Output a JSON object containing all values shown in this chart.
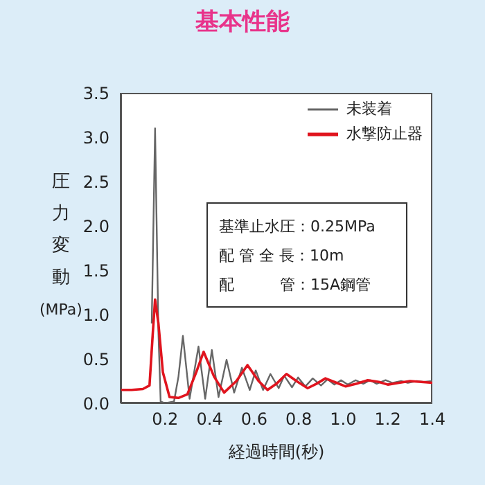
{
  "chart_data": {
    "type": "line",
    "title": "基本性能",
    "xlabel": "経過時間(秒)",
    "ylabel": "圧力変動(MPa)",
    "xlim": [
      0,
      1.4
    ],
    "xticks": [
      0.2,
      0.4,
      0.6,
      0.8,
      {
        "value": 1.0,
        "label": "1.0"
      },
      1.2,
      1.4
    ],
    "ylim": [
      0,
      3.5
    ],
    "yticks": [
      {
        "value": 0,
        "label": "0.0"
      },
      0.5,
      {
        "value": 1,
        "label": "1.0"
      },
      1.5,
      {
        "value": 2,
        "label": "2.0"
      },
      2.5,
      {
        "value": 3,
        "label": "3.0"
      },
      3.5
    ],
    "legend": "top right",
    "marker": "none",
    "line_style": "solid",
    "annotations": [
      "基準止水圧：0.25MPa",
      "配 管 全 長：10m",
      "配　　　管：15A鋼管"
    ],
    "series": [
      {
        "name": "未装着",
        "color": "#666666",
        "x": [
          0.14,
          0.155,
          0.17,
          0.18,
          0.2,
          0.24,
          0.26,
          0.28,
          0.31,
          0.35,
          0.38,
          0.41,
          0.44,
          0.476,
          0.51,
          0.545,
          0.58,
          0.607,
          0.64,
          0.673,
          0.71,
          0.735,
          0.77,
          0.797,
          0.83,
          0.863,
          0.9,
          0.93,
          0.96,
          0.99,
          1.02,
          1.056,
          1.09,
          1.12,
          1.15,
          1.19,
          1.22,
          1.26,
          1.29,
          1.33,
          1.36,
          1.4
        ],
        "values": [
          0.9,
          3.1,
          0.8,
          0.02,
          0.0,
          0.02,
          0.3,
          0.76,
          0.05,
          0.64,
          0.05,
          0.6,
          0.07,
          0.49,
          0.12,
          0.4,
          0.15,
          0.37,
          0.15,
          0.33,
          0.17,
          0.31,
          0.18,
          0.29,
          0.19,
          0.28,
          0.2,
          0.27,
          0.21,
          0.26,
          0.21,
          0.26,
          0.22,
          0.26,
          0.22,
          0.26,
          0.23,
          0.25,
          0.23,
          0.25,
          0.24,
          0.25
        ]
      },
      {
        "name": "水撃防止器",
        "color": "#e0141e",
        "x": [
          0,
          0.05,
          0.1,
          0.13,
          0.145,
          0.155,
          0.17,
          0.19,
          0.22,
          0.26,
          0.3,
          0.34,
          0.373,
          0.42,
          0.465,
          0.52,
          0.57,
          0.62,
          0.66,
          0.7,
          0.745,
          0.79,
          0.84,
          0.88,
          0.92,
          0.96,
          1.01,
          1.06,
          1.11,
          1.16,
          1.2,
          1.25,
          1.3,
          1.35,
          1.4
        ],
        "values": [
          0.15,
          0.15,
          0.16,
          0.2,
          0.8,
          1.17,
          0.9,
          0.35,
          0.07,
          0.06,
          0.1,
          0.35,
          0.58,
          0.3,
          0.12,
          0.25,
          0.43,
          0.25,
          0.15,
          0.22,
          0.33,
          0.25,
          0.17,
          0.22,
          0.28,
          0.24,
          0.19,
          0.22,
          0.26,
          0.24,
          0.21,
          0.23,
          0.25,
          0.24,
          0.23
        ]
      }
    ]
  }
}
